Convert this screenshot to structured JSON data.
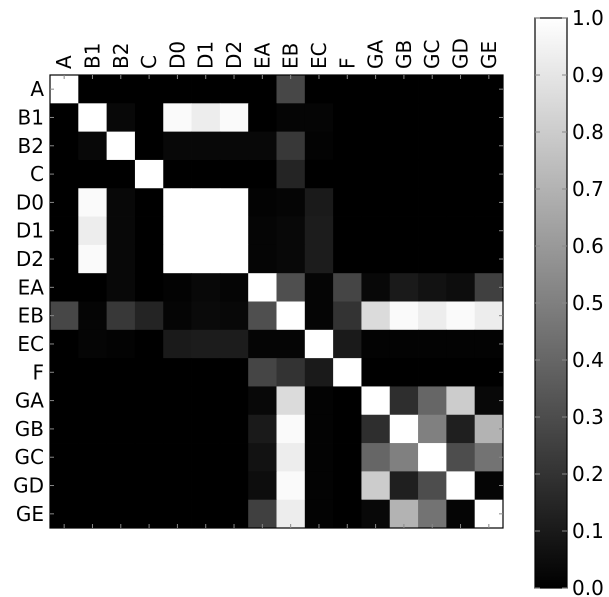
{
  "chart_data": {
    "type": "heatmap",
    "title": "",
    "xlabel": "",
    "ylabel": "",
    "x_labels": [
      "A",
      "B1",
      "B2",
      "C",
      "D0",
      "D1",
      "D2",
      "EA",
      "EB",
      "EC",
      "F",
      "GA",
      "GB",
      "GC",
      "GD",
      "GE"
    ],
    "y_labels": [
      "A",
      "B1",
      "B2",
      "C",
      "D0",
      "D1",
      "D2",
      "EA",
      "EB",
      "EC",
      "F",
      "GA",
      "GB",
      "GC",
      "GD",
      "GE"
    ],
    "x_axis_position": "top",
    "colormap": "gray",
    "colorbar": {
      "min": 0.0,
      "max": 1.0,
      "ticks": [
        0.0,
        0.1,
        0.2,
        0.3,
        0.4,
        0.5,
        0.6,
        0.7,
        0.8,
        0.9,
        1.0
      ],
      "tick_labels": [
        "0.0",
        "0.1",
        "0.2",
        "0.3",
        "0.4",
        "0.5",
        "0.6",
        "0.7",
        "0.8",
        "0.9",
        "1.0"
      ],
      "position": "right"
    },
    "values": [
      [
        1.0,
        0.0,
        0.0,
        0.0,
        0.0,
        0.0,
        0.0,
        0.0,
        0.28,
        0.0,
        0.0,
        0.0,
        0.0,
        0.0,
        0.0,
        0.0
      ],
      [
        0.0,
        1.0,
        0.03,
        0.0,
        0.98,
        0.93,
        0.98,
        0.0,
        0.02,
        0.02,
        0.0,
        0.0,
        0.0,
        0.0,
        0.0,
        0.0
      ],
      [
        0.0,
        0.03,
        1.0,
        0.0,
        0.03,
        0.03,
        0.03,
        0.03,
        0.22,
        0.01,
        0.0,
        0.0,
        0.0,
        0.0,
        0.0,
        0.0
      ],
      [
        0.0,
        0.0,
        0.0,
        1.0,
        0.0,
        0.0,
        0.0,
        0.0,
        0.14,
        0.0,
        0.0,
        0.0,
        0.0,
        0.0,
        0.0,
        0.0
      ],
      [
        0.0,
        0.98,
        0.03,
        0.0,
        1.0,
        1.0,
        1.0,
        0.01,
        0.02,
        0.1,
        0.0,
        0.0,
        0.0,
        0.0,
        0.0,
        0.0
      ],
      [
        0.0,
        0.93,
        0.03,
        0.0,
        1.0,
        1.0,
        1.0,
        0.02,
        0.03,
        0.11,
        0.0,
        0.0,
        0.0,
        0.0,
        0.0,
        0.0
      ],
      [
        0.0,
        0.98,
        0.03,
        0.0,
        1.0,
        1.0,
        1.0,
        0.02,
        0.03,
        0.11,
        0.0,
        0.0,
        0.0,
        0.0,
        0.0,
        0.0
      ],
      [
        0.0,
        0.0,
        0.03,
        0.0,
        0.01,
        0.03,
        0.02,
        1.0,
        0.31,
        0.02,
        0.27,
        0.03,
        0.1,
        0.07,
        0.05,
        0.25
      ],
      [
        0.28,
        0.02,
        0.22,
        0.14,
        0.02,
        0.04,
        0.03,
        0.31,
        1.0,
        0.02,
        0.2,
        0.86,
        0.98,
        0.93,
        0.98,
        0.93
      ],
      [
        0.0,
        0.02,
        0.01,
        0.0,
        0.1,
        0.11,
        0.11,
        0.02,
        0.02,
        1.0,
        0.1,
        0.01,
        0.01,
        0.01,
        0.01,
        0.01
      ],
      [
        0.0,
        0.0,
        0.0,
        0.0,
        0.0,
        0.0,
        0.0,
        0.27,
        0.2,
        0.1,
        1.0,
        0.0,
        0.0,
        0.0,
        0.0,
        0.0
      ],
      [
        0.0,
        0.0,
        0.0,
        0.0,
        0.0,
        0.0,
        0.0,
        0.03,
        0.86,
        0.01,
        0.0,
        1.0,
        0.18,
        0.4,
        0.8,
        0.03
      ],
      [
        0.0,
        0.0,
        0.0,
        0.0,
        0.0,
        0.0,
        0.0,
        0.1,
        0.98,
        0.01,
        0.0,
        0.18,
        1.0,
        0.5,
        0.12,
        0.7
      ],
      [
        0.0,
        0.0,
        0.0,
        0.0,
        0.0,
        0.0,
        0.0,
        0.07,
        0.93,
        0.01,
        0.0,
        0.4,
        0.5,
        1.0,
        0.3,
        0.45
      ],
      [
        0.0,
        0.0,
        0.0,
        0.0,
        0.0,
        0.0,
        0.0,
        0.05,
        0.98,
        0.01,
        0.0,
        0.8,
        0.12,
        0.3,
        1.0,
        0.02
      ],
      [
        0.0,
        0.0,
        0.0,
        0.0,
        0.0,
        0.0,
        0.0,
        0.25,
        0.93,
        0.01,
        0.0,
        0.03,
        0.7,
        0.45,
        0.02,
        1.0
      ]
    ],
    "grid": false,
    "legend": "none"
  }
}
